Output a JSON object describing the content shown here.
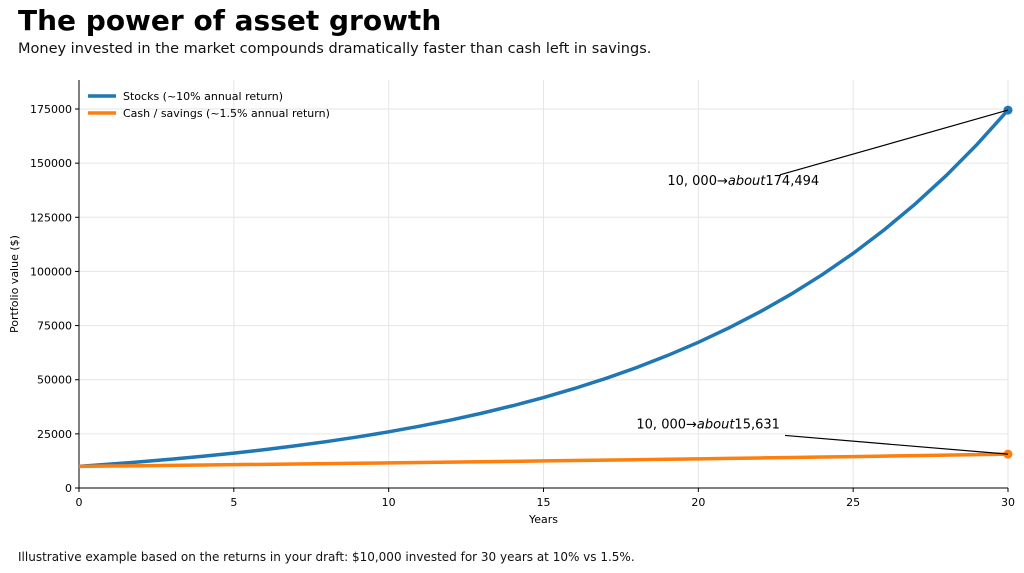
{
  "chart_data": {
    "type": "line",
    "title": "The power of asset growth",
    "subtitle": "Money invested in the market compounds dramatically faster than cash left in savings.",
    "footnote": "Illustrative example based on the returns in your draft: $10,000 invested for 30 years at 10% vs 1.5%.",
    "xlabel": "Years",
    "ylabel": "Portfolio value ($)",
    "xlim": [
      0,
      30
    ],
    "ylim": [
      0,
      187500
    ],
    "xticks": [
      0,
      5,
      10,
      15,
      20,
      25,
      30
    ],
    "yticks": [
      0,
      25000,
      50000,
      75000,
      100000,
      125000,
      150000,
      175000
    ],
    "grid": true,
    "legend": "top-left",
    "x": [
      0,
      1,
      2,
      3,
      4,
      5,
      6,
      7,
      8,
      9,
      10,
      11,
      12,
      13,
      14,
      15,
      16,
      17,
      18,
      19,
      20,
      21,
      22,
      23,
      24,
      25,
      26,
      27,
      28,
      29,
      30
    ],
    "series": [
      {
        "name": "Stocks (~10% annual return)",
        "color": "#1f77b4",
        "values": [
          10000,
          11000,
          12100,
          13310,
          14641,
          16105,
          17716,
          19487,
          21436,
          23579,
          25937,
          28531,
          31384,
          34523,
          37975,
          41772,
          45950,
          50545,
          55599,
          61159,
          67275,
          74002,
          81403,
          89543,
          98497,
          108347,
          119182,
          131100,
          144210,
          158631,
          174494
        ]
      },
      {
        "name": "Cash / savings (~1.5% annual return)",
        "color": "#ff7f0e",
        "values": [
          10000,
          10150,
          10302,
          10457,
          10614,
          10773,
          10934,
          11098,
          11265,
          11434,
          11605,
          11779,
          11956,
          12136,
          12318,
          12502,
          12690,
          12880,
          13073,
          13270,
          13469,
          13671,
          13876,
          14084,
          14295,
          14509,
          14727,
          14948,
          15172,
          15400,
          15631
        ]
      }
    ],
    "annotations": [
      {
        "text": "10, 000→about174,494",
        "prefix": "10, 000→",
        "italic": "about",
        "suffix": "174,494",
        "point": [
          30,
          174494
        ],
        "text_at": [
          19,
          140000
        ]
      },
      {
        "text": "10, 000→about15,631",
        "prefix": "10, 000→",
        "italic": "about",
        "suffix": "15,631",
        "point": [
          30,
          15631
        ],
        "text_at": [
          18,
          27500
        ]
      }
    ]
  }
}
